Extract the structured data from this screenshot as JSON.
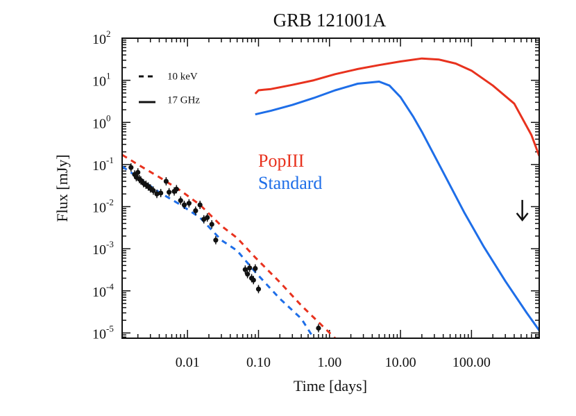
{
  "chart_data": {
    "type": "line",
    "title": "GRB 121001A",
    "xlabel": "Time [days]",
    "ylabel": "Flux [mJy]",
    "x_scale": "log",
    "y_scale": "log",
    "xlim": [
      0.0012,
      900
    ],
    "ylim": [
      7.5e-06,
      100
    ],
    "grid": false,
    "x_ticks": [
      {
        "value": 0.01,
        "label": "0.01"
      },
      {
        "value": 0.1,
        "label": "0.10"
      },
      {
        "value": 1,
        "label": "1.00"
      },
      {
        "value": 10,
        "label": "10.00"
      },
      {
        "value": 100,
        "label": "100.00"
      }
    ],
    "y_ticks": [
      {
        "value": 100,
        "base": "10",
        "exp": "2"
      },
      {
        "value": 10,
        "base": "10",
        "exp": "1"
      },
      {
        "value": 1,
        "base": "10",
        "exp": "0"
      },
      {
        "value": 0.1,
        "base": "10",
        "exp": "-1"
      },
      {
        "value": 0.01,
        "base": "10",
        "exp": "-2"
      },
      {
        "value": 0.001,
        "base": "10",
        "exp": "-3"
      },
      {
        "value": 0.0001,
        "base": "10",
        "exp": "-4"
      },
      {
        "value": 1e-05,
        "base": "10",
        "exp": "-5"
      }
    ],
    "legend": [
      {
        "label": "10 keV",
        "style": "dashed"
      },
      {
        "label": "17 GHz",
        "style": "solid"
      }
    ],
    "model_labels": [
      {
        "text": "PopIII",
        "color": "#e8321e"
      },
      {
        "text": "Standard",
        "color": "#1e6ee8"
      }
    ],
    "series": [
      {
        "model": "PopIII",
        "band": "10 keV",
        "color": "#e8321e",
        "style": "dashed",
        "points": [
          [
            0.0012,
            0.17
          ],
          [
            0.002,
            0.1
          ],
          [
            0.004,
            0.05
          ],
          [
            0.008,
            0.024
          ],
          [
            0.015,
            0.011
          ],
          [
            0.03,
            0.0035
          ],
          [
            0.05,
            0.0018
          ],
          [
            0.09,
            0.00062
          ],
          [
            0.2,
            0.00016
          ],
          [
            0.4,
            4.5e-05
          ],
          [
            1.2,
            7.5e-06
          ]
        ]
      },
      {
        "model": "Standard",
        "band": "10 keV",
        "color": "#1e6ee8",
        "style": "dashed",
        "points": [
          [
            0.0012,
            0.09
          ],
          [
            0.002,
            0.05
          ],
          [
            0.004,
            0.022
          ],
          [
            0.008,
            0.011
          ],
          [
            0.015,
            0.0055
          ],
          [
            0.03,
            0.0016
          ],
          [
            0.05,
            0.0009
          ],
          [
            0.09,
            0.00028
          ],
          [
            0.2,
            6.5e-05
          ],
          [
            0.4,
            2.2e-05
          ],
          [
            0.6,
            7.5e-06
          ]
        ]
      },
      {
        "model": "PopIII",
        "band": "17 GHz",
        "color": "#e8321e",
        "style": "solid",
        "points": [
          [
            0.09,
            4.8
          ],
          [
            0.1,
            5.8
          ],
          [
            0.15,
            6.2
          ],
          [
            0.3,
            7.8
          ],
          [
            0.6,
            10
          ],
          [
            1.2,
            14
          ],
          [
            2.5,
            18.5
          ],
          [
            5,
            23
          ],
          [
            10,
            28
          ],
          [
            20,
            33
          ],
          [
            35,
            31
          ],
          [
            60,
            25
          ],
          [
            100,
            17
          ],
          [
            200,
            7.5
          ],
          [
            400,
            2.8
          ],
          [
            700,
            0.5
          ],
          [
            900,
            0.16
          ]
        ]
      },
      {
        "model": "Standard",
        "band": "17 GHz",
        "color": "#1e6ee8",
        "style": "solid",
        "points": [
          [
            0.09,
            1.55
          ],
          [
            0.15,
            1.9
          ],
          [
            0.3,
            2.6
          ],
          [
            0.6,
            3.8
          ],
          [
            1.2,
            5.8
          ],
          [
            2.5,
            8.3
          ],
          [
            5,
            9.3
          ],
          [
            7,
            7.5
          ],
          [
            10,
            4
          ],
          [
            15,
            1.4
          ],
          [
            20,
            0.6
          ],
          [
            40,
            0.065
          ],
          [
            80,
            0.007
          ],
          [
            150,
            0.0011
          ],
          [
            300,
            0.00017
          ],
          [
            600,
            3e-05
          ],
          [
            900,
            1.15e-05
          ]
        ]
      }
    ],
    "observations": {
      "color": "#111111",
      "points": [
        [
          0.0016,
          0.085
        ],
        [
          0.0018,
          0.058
        ],
        [
          0.0019,
          0.05
        ],
        [
          0.002,
          0.065
        ],
        [
          0.0021,
          0.045
        ],
        [
          0.0022,
          0.042
        ],
        [
          0.0024,
          0.036
        ],
        [
          0.0026,
          0.033
        ],
        [
          0.0028,
          0.03
        ],
        [
          0.003,
          0.027
        ],
        [
          0.0033,
          0.024
        ],
        [
          0.0037,
          0.02
        ],
        [
          0.0042,
          0.021
        ],
        [
          0.005,
          0.04
        ],
        [
          0.0055,
          0.022
        ],
        [
          0.0065,
          0.023
        ],
        [
          0.007,
          0.026
        ],
        [
          0.008,
          0.014
        ],
        [
          0.009,
          0.011
        ],
        [
          0.0105,
          0.012
        ],
        [
          0.013,
          0.008
        ],
        [
          0.015,
          0.011
        ],
        [
          0.017,
          0.005
        ],
        [
          0.019,
          0.0055
        ],
        [
          0.022,
          0.0038
        ],
        [
          0.025,
          0.0016
        ],
        [
          0.065,
          0.00032
        ],
        [
          0.07,
          0.00025
        ],
        [
          0.075,
          0.00035
        ],
        [
          0.08,
          0.0002
        ],
        [
          0.085,
          0.00018
        ],
        [
          0.09,
          0.00034
        ],
        [
          0.1,
          0.00011
        ],
        [
          0.7,
          1.3e-05
        ]
      ]
    },
    "upper_limit": {
      "x": 520,
      "y": 0.0095
    }
  }
}
